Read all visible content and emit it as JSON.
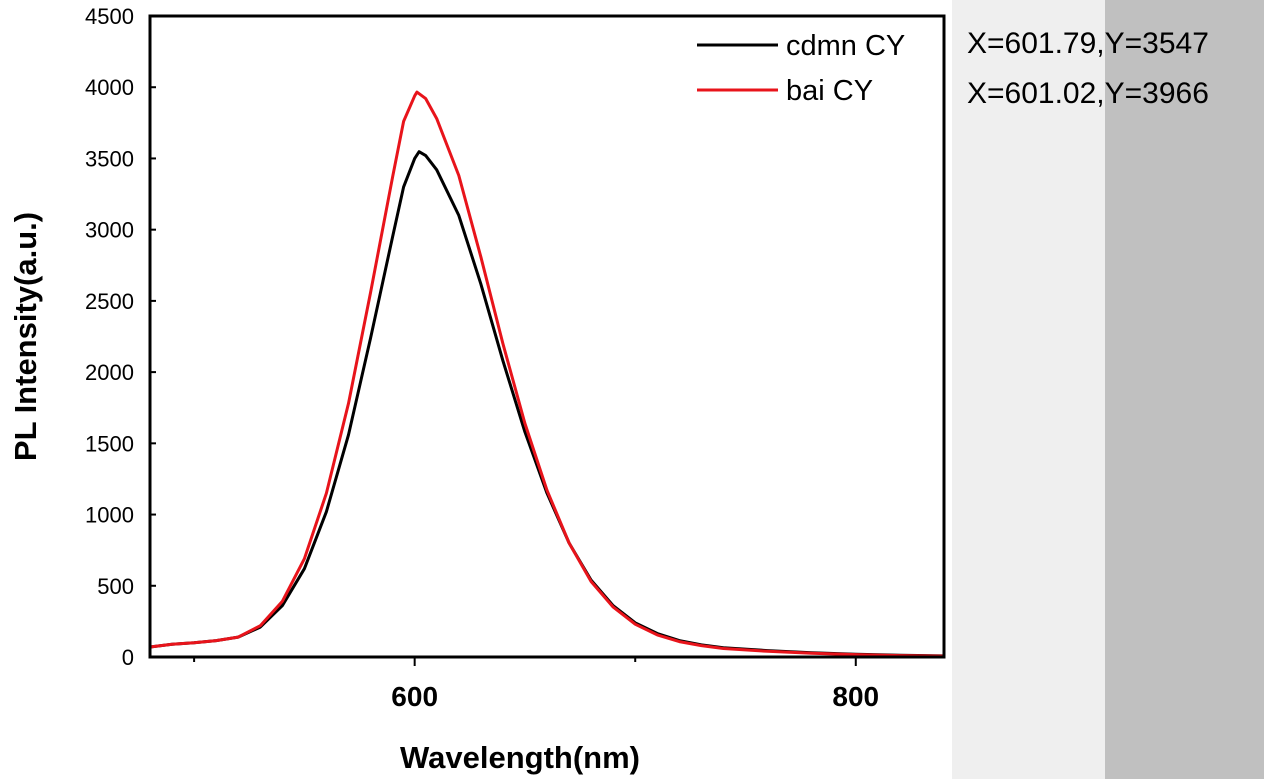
{
  "chart_data": {
    "type": "line",
    "title": "",
    "xlabel": "Wavelength(nm)",
    "ylabel": "PL Intensity(a.u.)",
    "xlim": [
      480,
      840
    ],
    "ylim": [
      0,
      4500
    ],
    "x_ticks": [
      600,
      800
    ],
    "x_minor_ticks": [
      500,
      700
    ],
    "y_ticks": [
      0,
      500,
      1000,
      1500,
      2000,
      2500,
      3000,
      3500,
      4000,
      4500
    ],
    "grid": false,
    "legend_position": "top-right",
    "series": [
      {
        "name": "cdmn CY",
        "color": "#000000",
        "points": [
          [
            480,
            70
          ],
          [
            490,
            90
          ],
          [
            500,
            100
          ],
          [
            510,
            115
          ],
          [
            520,
            140
          ],
          [
            530,
            210
          ],
          [
            540,
            360
          ],
          [
            550,
            620
          ],
          [
            560,
            1020
          ],
          [
            570,
            1560
          ],
          [
            580,
            2240
          ],
          [
            590,
            2950
          ],
          [
            595,
            3300
          ],
          [
            600,
            3500
          ],
          [
            602,
            3547
          ],
          [
            605,
            3520
          ],
          [
            610,
            3420
          ],
          [
            620,
            3100
          ],
          [
            630,
            2620
          ],
          [
            640,
            2080
          ],
          [
            650,
            1580
          ],
          [
            660,
            1150
          ],
          [
            670,
            800
          ],
          [
            680,
            540
          ],
          [
            690,
            360
          ],
          [
            700,
            240
          ],
          [
            710,
            165
          ],
          [
            720,
            115
          ],
          [
            730,
            85
          ],
          [
            740,
            65
          ],
          [
            760,
            45
          ],
          [
            780,
            30
          ],
          [
            800,
            20
          ],
          [
            820,
            12
          ],
          [
            840,
            8
          ]
        ]
      },
      {
        "name": "bai CY",
        "color": "#e8141b",
        "points": [
          [
            480,
            70
          ],
          [
            490,
            90
          ],
          [
            500,
            100
          ],
          [
            510,
            115
          ],
          [
            520,
            140
          ],
          [
            530,
            220
          ],
          [
            540,
            390
          ],
          [
            550,
            690
          ],
          [
            560,
            1150
          ],
          [
            570,
            1780
          ],
          [
            580,
            2560
          ],
          [
            590,
            3370
          ],
          [
            595,
            3760
          ],
          [
            600,
            3940
          ],
          [
            601,
            3966
          ],
          [
            605,
            3920
          ],
          [
            610,
            3780
          ],
          [
            620,
            3380
          ],
          [
            630,
            2810
          ],
          [
            640,
            2200
          ],
          [
            650,
            1640
          ],
          [
            660,
            1170
          ],
          [
            670,
            800
          ],
          [
            680,
            530
          ],
          [
            690,
            350
          ],
          [
            700,
            230
          ],
          [
            710,
            155
          ],
          [
            720,
            108
          ],
          [
            730,
            80
          ],
          [
            740,
            60
          ],
          [
            760,
            40
          ],
          [
            780,
            26
          ],
          [
            800,
            17
          ],
          [
            820,
            10
          ],
          [
            840,
            6
          ]
        ]
      }
    ],
    "annotations": [
      "X=601.79,Y=3547",
      "X=601.02,Y=3966"
    ]
  },
  "readouts": [
    "X=601.79,Y=3547",
    "X=601.02,Y=3966"
  ],
  "colors": {
    "panel_light": "#efefef",
    "panel_dark": "#c0c0c0"
  }
}
